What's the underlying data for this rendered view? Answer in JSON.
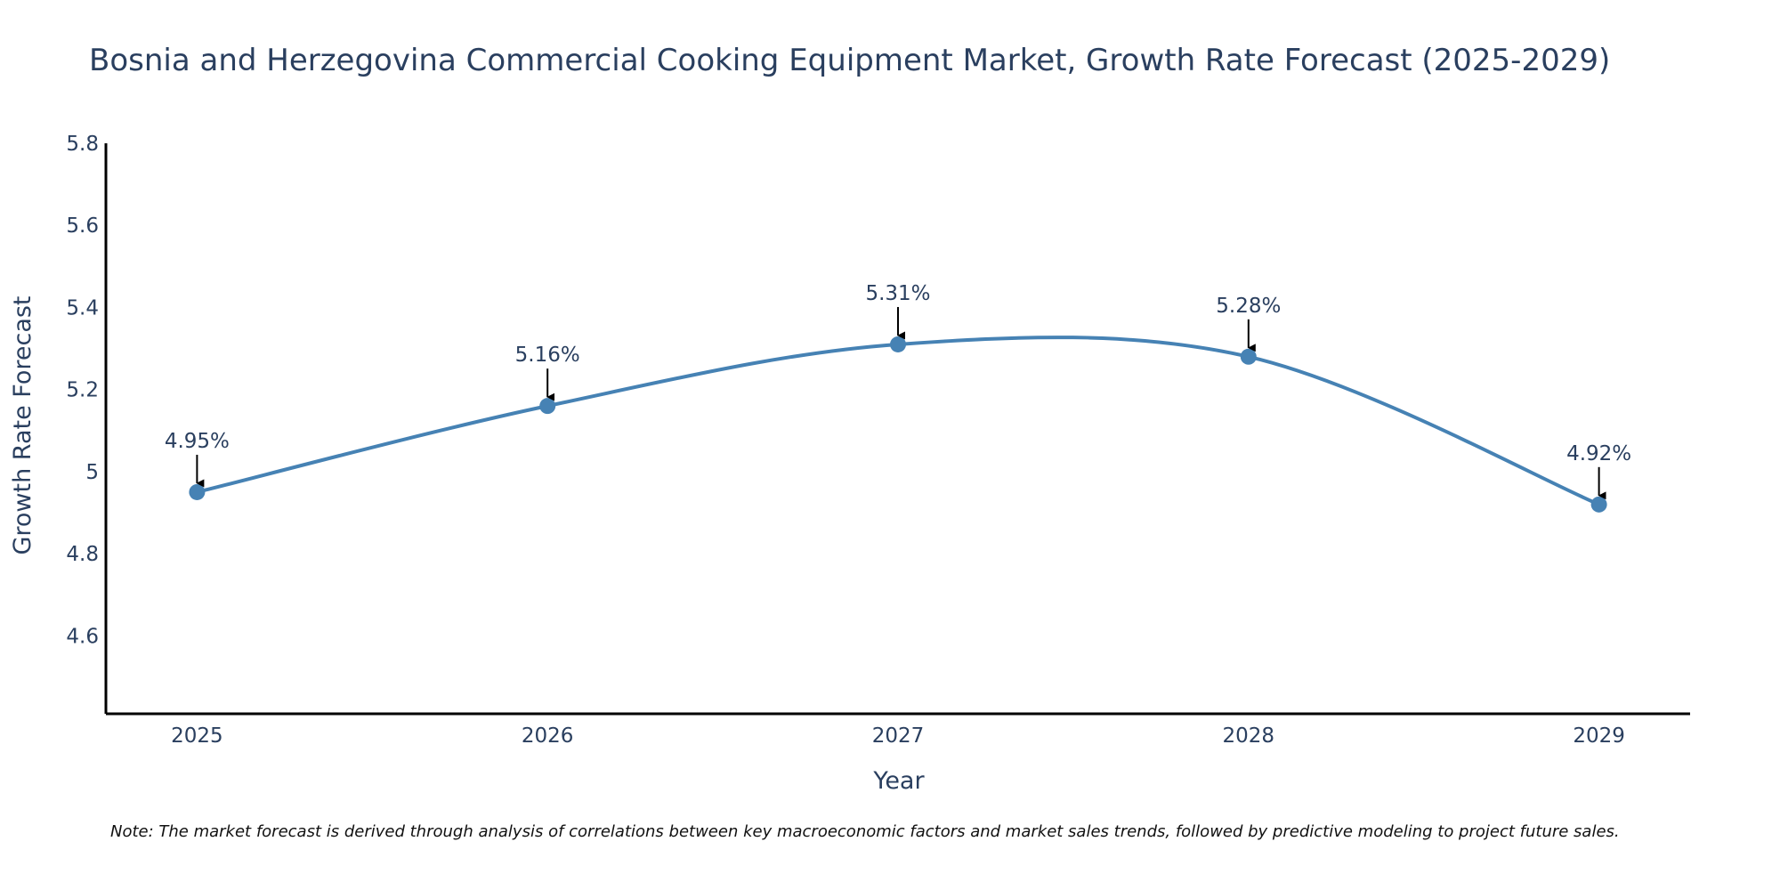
{
  "colors": {
    "line": "#4682b4",
    "marker": "#4682b4",
    "text": "#2a3f5f",
    "axis": "#000000",
    "arrow": "#000000"
  },
  "chart_data": {
    "type": "line",
    "title": "Bosnia and Herzegovina Commercial Cooking Equipment Market, Growth Rate Forecast (2025-2029)",
    "xlabel": "Year",
    "ylabel": "Growth Rate Forecast",
    "x": [
      2025,
      2026,
      2027,
      2028,
      2029
    ],
    "x_tick_labels": [
      "2025",
      "2026",
      "2027",
      "2028",
      "2029"
    ],
    "values": [
      4.95,
      5.16,
      5.31,
      5.28,
      4.92
    ],
    "data_labels": [
      "4.95%",
      "5.16%",
      "5.31%",
      "5.28%",
      "4.92%"
    ],
    "y_ticks": [
      4.6,
      4.8,
      5,
      5.2,
      5.4,
      5.6,
      5.8
    ],
    "y_tick_labels": [
      "4.6",
      "4.8",
      "5",
      "5.2",
      "5.4",
      "5.6",
      "5.8"
    ],
    "ylim": [
      4.41,
      5.8
    ],
    "xlim": [
      2024.74,
      2029.26
    ],
    "line_shape": "spline",
    "grid": false,
    "legend": "none"
  },
  "note": "Note: The market forecast is derived through analysis of correlations between key macroeconomic factors and market sales trends, followed by predictive modeling to project future sales."
}
